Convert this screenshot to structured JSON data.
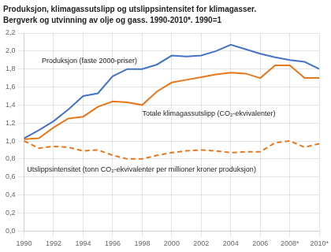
{
  "chart_data": {
    "type": "line",
    "title": "Produksjon, klimagassutslipp og utslippsintensitet for klimagasser.",
    "subtitle": "Bergverk og utvinning av olje og gass. 1990-2010*. 1990=1",
    "x": [
      1990,
      1991,
      1992,
      1993,
      1994,
      1995,
      1996,
      1997,
      1998,
      1999,
      2000,
      2001,
      2002,
      2003,
      2004,
      2005,
      2006,
      2007,
      2008,
      2009,
      2010
    ],
    "series": [
      {
        "color": "#4472C4",
        "line_style": "solid",
        "values": [
          1.03,
          1.12,
          1.22,
          1.35,
          1.5,
          1.53,
          1.72,
          1.8,
          1.8,
          1.85,
          1.95,
          1.94,
          1.95,
          2.0,
          2.07,
          2.02,
          1.97,
          1.93,
          1.9,
          1.88,
          1.8
        ]
      },
      {
        "color": "#E8761A",
        "line_style": "solid",
        "values": [
          1.02,
          1.03,
          1.15,
          1.25,
          1.27,
          1.38,
          1.44,
          1.43,
          1.4,
          1.55,
          1.65,
          1.68,
          1.71,
          1.74,
          1.76,
          1.75,
          1.7,
          1.84,
          1.84,
          1.7,
          1.7
        ]
      },
      {
        "color": "#E8761A",
        "line_style": "dashed",
        "values": [
          1.0,
          0.92,
          0.94,
          0.93,
          0.89,
          0.9,
          0.84,
          0.8,
          0.8,
          0.84,
          0.87,
          0.89,
          0.9,
          0.89,
          0.87,
          0.88,
          0.88,
          0.98,
          1.0,
          0.93,
          0.97
        ]
      }
    ],
    "xlim": [
      1990,
      2010
    ],
    "xticks": [
      1990,
      1992,
      1994,
      1996,
      1998,
      2000,
      2002,
      2004,
      2006,
      {
        "value": 2008,
        "label": "2008*"
      },
      {
        "value": 2010,
        "label": "2010*"
      }
    ],
    "ylim": [
      0.0,
      2.2
    ],
    "yticks": [
      {
        "value": 0.0,
        "label": "0,0"
      },
      {
        "value": 0.2,
        "label": "0,2"
      },
      {
        "value": 0.4,
        "label": "0,4"
      },
      {
        "value": 0.6,
        "label": "0,6"
      },
      {
        "value": 0.8,
        "label": "0,8"
      },
      {
        "value": 1.0,
        "label": "1,0"
      },
      {
        "value": 1.2,
        "label": "1,2"
      },
      {
        "value": 1.4,
        "label": "1,4"
      },
      {
        "value": 1.6,
        "label": "1,6"
      },
      {
        "value": 1.8,
        "label": "1,8"
      },
      {
        "value": 2.0,
        "label": "2,0"
      },
      {
        "value": 2.2,
        "label": "2,2"
      }
    ],
    "grid": true,
    "annotations": [
      {
        "text": "Produksjon (faste 2000-priser)",
        "x": 1991.2,
        "y": 1.87
      },
      {
        "text": "Totale klimagassutslipp (CO₂-ekvivalenter)",
        "x": 1998.0,
        "y": 1.28
      },
      {
        "text": "Utslippsintensitet (tonn CO₂-ekvivalenter per millioner kroner produksjon)",
        "x": 1990.2,
        "y": 0.655
      }
    ]
  }
}
